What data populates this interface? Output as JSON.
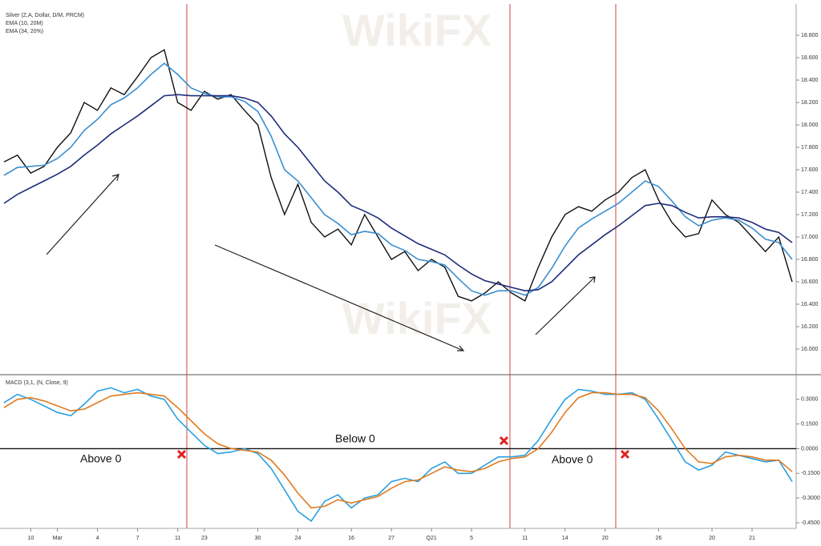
{
  "chart_data": [
    {
      "type": "line",
      "watermark": "WikiFX",
      "headers": [
        "Silver (Z,A, Dollar, D/M, PRCM)",
        "EMA (10, 20M)",
        "EMA (34, 20%)"
      ],
      "ylim": [
        15.9,
        18.9
      ],
      "yticks": [
        {
          "value": 16.0,
          "label": "16.000"
        },
        {
          "value": 16.2,
          "label": "16.200"
        },
        {
          "value": 16.4,
          "label": "16.400"
        },
        {
          "value": 16.6,
          "label": "16.600"
        },
        {
          "value": 16.8,
          "label": "16.800"
        },
        {
          "value": 17.0,
          "label": "17.000"
        },
        {
          "value": 17.2,
          "label": "17.200"
        },
        {
          "value": 17.4,
          "label": "17.400"
        },
        {
          "value": 17.6,
          "label": "17.600"
        },
        {
          "value": 17.8,
          "label": "17.800"
        },
        {
          "value": 18.0,
          "label": "18.000"
        },
        {
          "value": 18.2,
          "label": "18.200"
        },
        {
          "value": 18.4,
          "label": "18.400"
        },
        {
          "value": 18.6,
          "label": "18.600"
        },
        {
          "value": 18.8,
          "label": "18.800"
        }
      ],
      "series": [
        {
          "name": "Silver (Z,A, Dollar, D/M, PRCM)",
          "color": "#111111",
          "values": [
            17.67,
            17.73,
            17.57,
            17.63,
            17.8,
            17.93,
            18.2,
            18.13,
            18.33,
            18.27,
            18.43,
            18.6,
            18.67,
            18.2,
            18.13,
            18.3,
            18.23,
            18.27,
            18.13,
            18.0,
            17.53,
            17.2,
            17.47,
            17.13,
            17.0,
            17.07,
            16.93,
            17.2,
            17.0,
            16.8,
            16.87,
            16.7,
            16.8,
            16.73,
            16.47,
            16.43,
            16.5,
            16.6,
            16.5,
            16.43,
            16.73,
            17.0,
            17.2,
            17.27,
            17.23,
            17.33,
            17.4,
            17.53,
            17.6,
            17.33,
            17.13,
            17.0,
            17.03,
            17.33,
            17.2,
            17.13,
            17.0,
            16.87,
            17.0,
            16.6
          ]
        },
        {
          "name": "EMA (10, 20M)",
          "color": "#3a8fd0",
          "values": [
            17.55,
            17.62,
            17.63,
            17.64,
            17.7,
            17.8,
            17.95,
            18.05,
            18.18,
            18.24,
            18.33,
            18.45,
            18.55,
            18.45,
            18.33,
            18.28,
            18.25,
            18.25,
            18.21,
            18.12,
            17.9,
            17.6,
            17.5,
            17.35,
            17.2,
            17.12,
            17.02,
            17.05,
            17.03,
            16.93,
            16.88,
            16.8,
            16.78,
            16.75,
            16.63,
            16.52,
            16.48,
            16.52,
            16.52,
            16.48,
            16.55,
            16.72,
            16.92,
            17.08,
            17.16,
            17.23,
            17.3,
            17.4,
            17.5,
            17.45,
            17.32,
            17.18,
            17.1,
            17.15,
            17.17,
            17.15,
            17.08,
            16.98,
            16.95,
            16.8
          ]
        },
        {
          "name": "EMA (34, 20%)",
          "color": "#1f2d7a",
          "values": [
            17.3,
            17.38,
            17.44,
            17.5,
            17.56,
            17.63,
            17.73,
            17.82,
            17.92,
            18.0,
            18.08,
            18.17,
            18.26,
            18.27,
            18.26,
            18.26,
            18.26,
            18.26,
            18.24,
            18.2,
            18.08,
            17.92,
            17.8,
            17.65,
            17.5,
            17.4,
            17.28,
            17.23,
            17.17,
            17.08,
            17.01,
            16.94,
            16.89,
            16.84,
            16.75,
            16.67,
            16.61,
            16.58,
            16.55,
            16.52,
            16.53,
            16.6,
            16.72,
            16.84,
            16.93,
            17.02,
            17.1,
            17.19,
            17.28,
            17.3,
            17.28,
            17.22,
            17.17,
            17.18,
            17.18,
            17.17,
            17.13,
            17.07,
            17.04,
            16.95
          ]
        }
      ]
    },
    {
      "type": "line",
      "label": "MACD (3,1, (N, Close, 9)",
      "annotations": [
        "Above 0",
        "Below 0",
        "Above 0"
      ],
      "categories": [
        null,
        null,
        "10",
        null,
        "Mar",
        null,
        null,
        "4",
        null,
        null,
        "7",
        null,
        null,
        "11",
        null,
        "23",
        null,
        null,
        null,
        "30",
        null,
        null,
        "24",
        null,
        null,
        null,
        "16",
        null,
        null,
        "27",
        null,
        null,
        "Q21",
        null,
        null,
        "5",
        null,
        null,
        null,
        "11",
        null,
        null,
        "14",
        null,
        null,
        "20",
        null,
        null,
        null,
        "26",
        null,
        null,
        null,
        "20",
        null,
        null,
        "21",
        null,
        null,
        null
      ],
      "ylim": [
        -0.46,
        0.44
      ],
      "yticks": [
        {
          "value": 0.3,
          "label": "0.3000"
        },
        {
          "value": 0.15,
          "label": "0.1500"
        },
        {
          "value": 0,
          "label": "0.0000"
        },
        {
          "value": -0.15,
          "label": "-0.1500"
        },
        {
          "value": -0.3,
          "label": "-0.3000"
        },
        {
          "value": -0.45,
          "label": "-0.4500"
        }
      ],
      "series": [
        {
          "color": "#2a9fe0",
          "values": [
            0.28,
            0.33,
            0.3,
            0.26,
            0.22,
            0.2,
            0.27,
            0.35,
            0.37,
            0.34,
            0.36,
            0.32,
            0.3,
            0.18,
            0.1,
            0.02,
            -0.03,
            -0.02,
            0.0,
            -0.03,
            -0.12,
            -0.25,
            -0.38,
            -0.44,
            -0.32,
            -0.28,
            -0.36,
            -0.3,
            -0.28,
            -0.2,
            -0.18,
            -0.2,
            -0.12,
            -0.08,
            -0.15,
            -0.15,
            -0.1,
            -0.05,
            -0.05,
            -0.04,
            0.05,
            0.18,
            0.3,
            0.36,
            0.35,
            0.33,
            0.33,
            0.34,
            0.3,
            0.18,
            0.05,
            -0.08,
            -0.13,
            -0.1,
            -0.02,
            -0.04,
            -0.06,
            -0.08,
            -0.07,
            -0.2
          ]
        },
        {
          "color": "#e07b20",
          "values": [
            0.25,
            0.3,
            0.31,
            0.29,
            0.26,
            0.23,
            0.24,
            0.28,
            0.32,
            0.33,
            0.34,
            0.33,
            0.32,
            0.25,
            0.17,
            0.09,
            0.03,
            0.0,
            -0.01,
            -0.02,
            -0.07,
            -0.16,
            -0.27,
            -0.36,
            -0.35,
            -0.31,
            -0.33,
            -0.31,
            -0.29,
            -0.24,
            -0.2,
            -0.19,
            -0.15,
            -0.11,
            -0.13,
            -0.14,
            -0.12,
            -0.08,
            -0.06,
            -0.05,
            0.0,
            0.1,
            0.22,
            0.31,
            0.34,
            0.34,
            0.33,
            0.33,
            0.31,
            0.23,
            0.12,
            0.0,
            -0.08,
            -0.09,
            -0.05,
            -0.04,
            -0.05,
            -0.07,
            -0.07,
            -0.14
          ]
        }
      ]
    }
  ]
}
